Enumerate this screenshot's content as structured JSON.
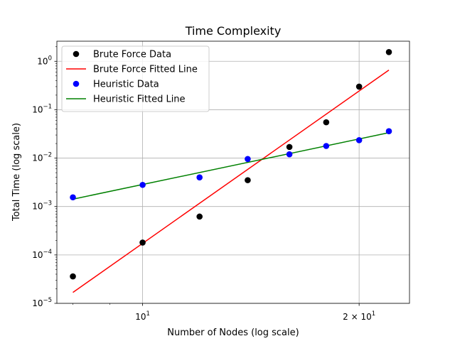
{
  "chart_data": {
    "type": "scatter",
    "title": "Time Complexity",
    "xlabel": "Number of Nodes (log scale)",
    "ylabel": "Total Time (log scale)",
    "xscale": "log",
    "yscale": "log",
    "xlim": [
      7.6,
      23.5
    ],
    "ylim": [
      1e-05,
      2.6
    ],
    "x_ticks": [
      {
        "value": 10,
        "base": "10",
        "exp": "1",
        "coef": ""
      },
      {
        "value": 20,
        "base": "10",
        "exp": "1",
        "coef": "2 × "
      }
    ],
    "y_ticks": [
      {
        "value": 1e-05,
        "base": "10",
        "exp": "−5"
      },
      {
        "value": 0.0001,
        "base": "10",
        "exp": "−4"
      },
      {
        "value": 0.001,
        "base": "10",
        "exp": "−3"
      },
      {
        "value": 0.01,
        "base": "10",
        "exp": "−2"
      },
      {
        "value": 0.1,
        "base": "10",
        "exp": "−1"
      },
      {
        "value": 1,
        "base": "10",
        "exp": "0"
      }
    ],
    "grid": true,
    "legend_position": "upper-left",
    "series": [
      {
        "name": "Brute Force Data",
        "kind": "points",
        "color": "#000000",
        "x": [
          8,
          10,
          12,
          14,
          16,
          18,
          20,
          22
        ],
        "y": [
          3.6e-05,
          0.00018,
          0.00062,
          0.0035,
          0.017,
          0.055,
          0.3,
          1.55
        ]
      },
      {
        "name": "Brute Force Fitted Line",
        "kind": "line",
        "color": "#ff0000",
        "x": [
          8,
          22
        ],
        "y": [
          1.68e-05,
          0.66
        ]
      },
      {
        "name": "Heuristic Data",
        "kind": "points",
        "color": "#0000ff",
        "x": [
          8,
          10,
          12,
          14,
          16,
          18,
          20,
          22
        ],
        "y": [
          0.00155,
          0.0028,
          0.004,
          0.0096,
          0.012,
          0.0178,
          0.0235,
          0.036
        ]
      },
      {
        "name": "Heuristic Fitted Line",
        "kind": "line",
        "color": "#008000",
        "x": [
          8,
          22
        ],
        "y": [
          0.00142,
          0.0335
        ]
      }
    ]
  }
}
